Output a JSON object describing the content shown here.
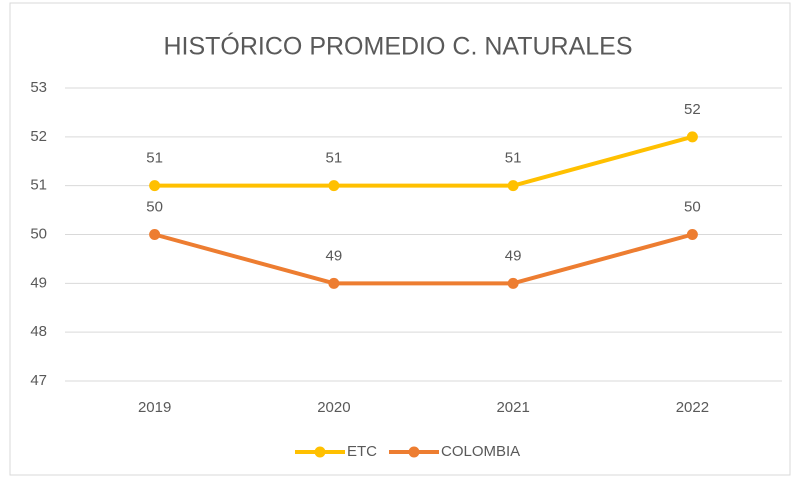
{
  "chart_data": {
    "type": "line",
    "title": "HISTÓRICO PROMEDIO C. NATURALES",
    "categories": [
      "2019",
      "2020",
      "2021",
      "2022"
    ],
    "series": [
      {
        "name": "ETC",
        "color": "#ffc000",
        "values": [
          51,
          51,
          51,
          52
        ]
      },
      {
        "name": "COLOMBIA",
        "color": "#ed7d31",
        "values": [
          50,
          49,
          49,
          50
        ]
      }
    ],
    "ylim": [
      47,
      53
    ],
    "yticks": [
      47,
      48,
      49,
      50,
      51,
      52,
      53
    ],
    "grid": true,
    "legend": "bottom"
  }
}
